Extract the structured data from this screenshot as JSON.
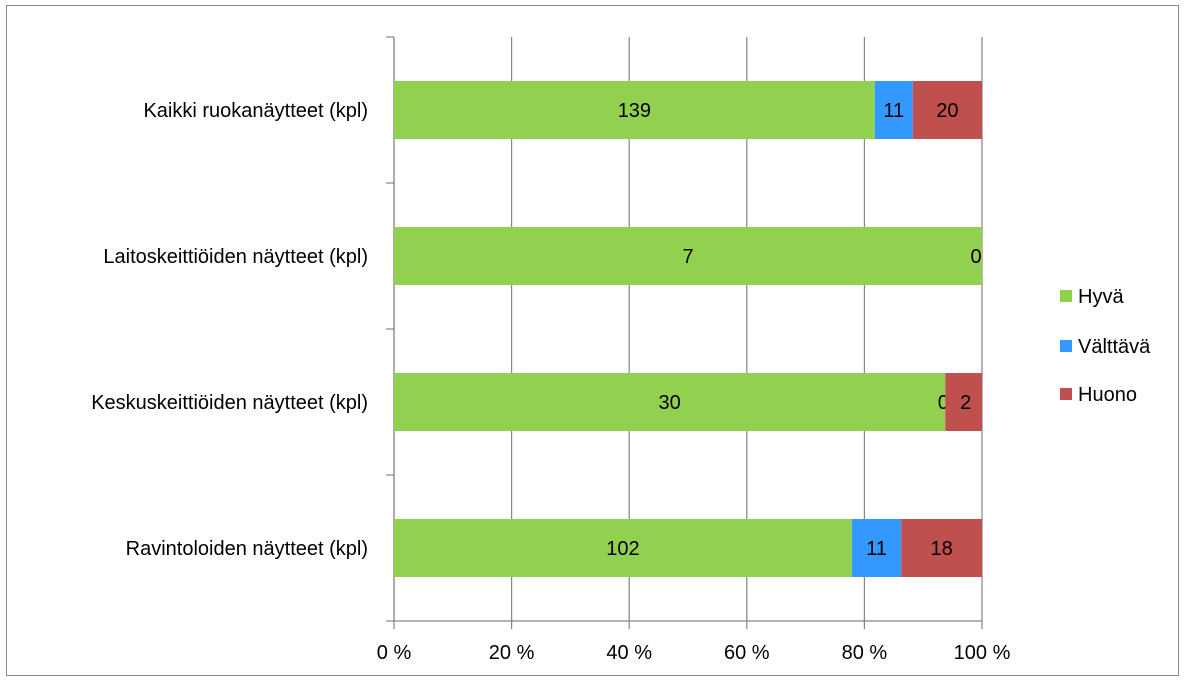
{
  "chart_data": {
    "type": "bar",
    "orientation": "horizontal",
    "stacked": "percent",
    "categories": [
      "Kaikki ruokanäytteet (kpl)",
      "Laitoskeittiöiden näytteet (kpl)",
      "Keskuskeittiöiden näytteet (kpl)",
      "Ravintoloiden näytteet (kpl)"
    ],
    "series": [
      {
        "name": "Hyvä",
        "color": "#92d050",
        "values": [
          139,
          7,
          30,
          102
        ]
      },
      {
        "name": "Välttävä",
        "color": "#3399ff",
        "values": [
          11,
          0,
          0,
          11
        ]
      },
      {
        "name": "Huono",
        "color": "#c0504d",
        "values": [
          20,
          0,
          2,
          18
        ]
      }
    ],
    "data_labels": [
      [
        "139",
        "11",
        "20"
      ],
      [
        "7",
        "0",
        ""
      ],
      [
        "30",
        "0",
        "2"
      ],
      [
        "102",
        "11",
        "18"
      ]
    ],
    "x_ticks": [
      "0 %",
      "20 %",
      "40 %",
      "60 %",
      "80 %",
      "100 %"
    ],
    "xlim": [
      0,
      100
    ],
    "grid": true,
    "legend_position": "right",
    "title": "",
    "xlabel": "",
    "ylabel": ""
  }
}
